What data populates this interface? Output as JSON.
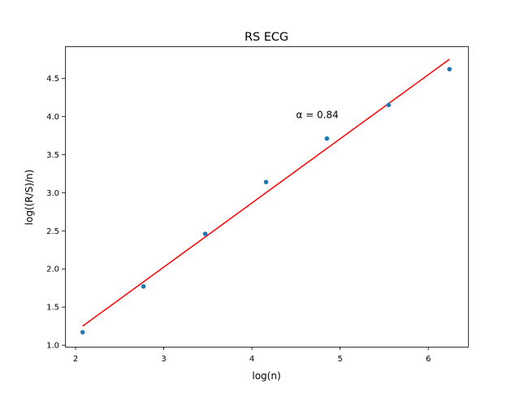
{
  "chart_data": {
    "type": "scatter",
    "title": "RS ECG",
    "xlabel": "log(n)",
    "ylabel": "log((R/S)/n)",
    "xlim": [
      1.88,
      6.45
    ],
    "ylim": [
      0.98,
      4.92
    ],
    "xticks": [
      2,
      3,
      4,
      5,
      6
    ],
    "xtick_labels": [
      "2",
      "3",
      "4",
      "5",
      "6"
    ],
    "yticks": [
      1.0,
      1.5,
      2.0,
      2.5,
      3.0,
      3.5,
      4.0,
      4.5
    ],
    "ytick_labels": [
      "1.0",
      "1.5",
      "2.0",
      "2.5",
      "3.0",
      "3.5",
      "4.0",
      "4.5"
    ],
    "grid": false,
    "series": [
      {
        "point_color": "#1f77b4",
        "x": [
          2.08,
          2.77,
          3.47,
          4.16,
          4.85,
          5.55,
          6.24
        ],
        "y": [
          1.17,
          1.77,
          2.46,
          3.14,
          3.71,
          4.15,
          4.62
        ]
      }
    ],
    "fit_line": {
      "color": "#ff0000",
      "x": [
        2.08,
        6.24
      ],
      "y": [
        1.25,
        4.75
      ]
    },
    "annotation": {
      "text": "α = 0.84",
      "x": 4.5,
      "y": 4.02
    }
  }
}
